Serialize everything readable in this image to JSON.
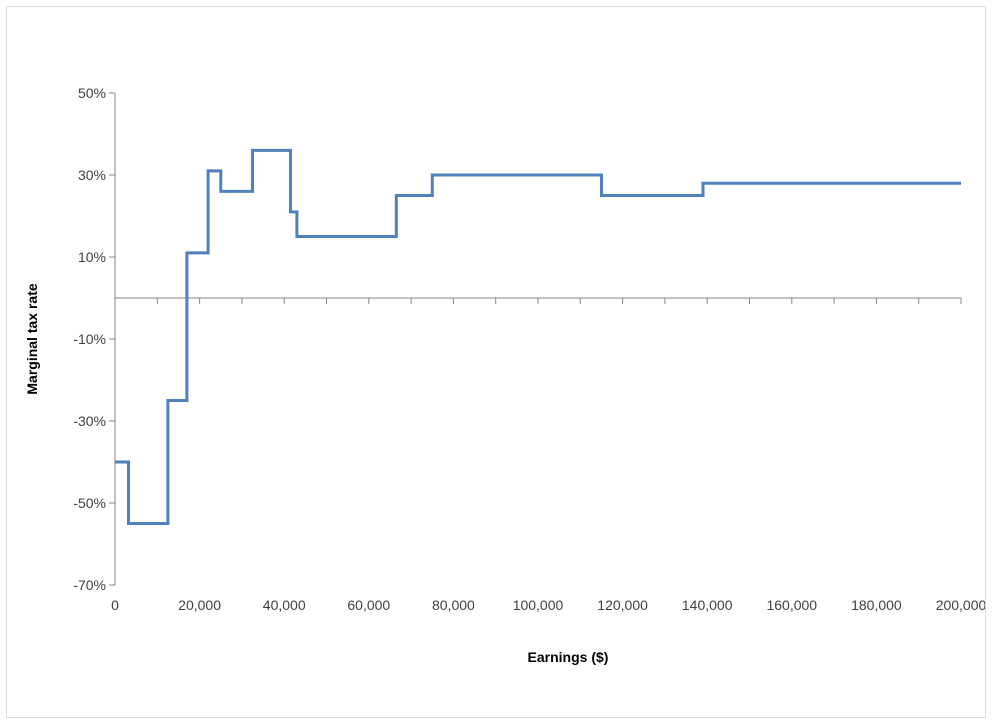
{
  "chart_data": {
    "type": "line",
    "title": "",
    "xlabel": "Earnings ($)",
    "ylabel": "Marginal tax rate",
    "xlim": [
      0,
      200000
    ],
    "ylim": [
      -70,
      50
    ],
    "x_tick_values": [
      0,
      20000,
      40000,
      60000,
      80000,
      100000,
      120000,
      140000,
      160000,
      180000,
      200000
    ],
    "x_tick_labels": [
      "0",
      "20,000",
      "40,000",
      "60,000",
      "80,000",
      "100,000",
      "120,000",
      "140,000",
      "160,000",
      "180,000",
      "200,000"
    ],
    "x_minor_step": 10000,
    "y_tick_values": [
      50,
      30,
      10,
      -10,
      -30,
      -50,
      -70
    ],
    "y_tick_labels": [
      "50%",
      "30%",
      "10%",
      "-10%",
      "-30%",
      "-50%",
      "-70%"
    ],
    "grid": false,
    "legend": "none",
    "series_color": "#4f81bd",
    "series": [
      {
        "x": [
          0,
          3200,
          3200,
          12500,
          12500,
          17000,
          17000,
          22000,
          22000,
          25000,
          25000,
          32500,
          32500,
          41500,
          41500,
          43000,
          43000,
          66500,
          66500,
          75000,
          75000,
          115000,
          115000,
          139000,
          139000,
          200000
        ],
        "y": [
          -40,
          -40,
          -55,
          -55,
          -25,
          -25,
          11,
          11,
          31,
          31,
          26,
          26,
          36,
          36,
          21,
          21,
          15,
          15,
          25,
          25,
          30,
          30,
          25,
          25,
          28,
          28
        ]
      }
    ]
  }
}
